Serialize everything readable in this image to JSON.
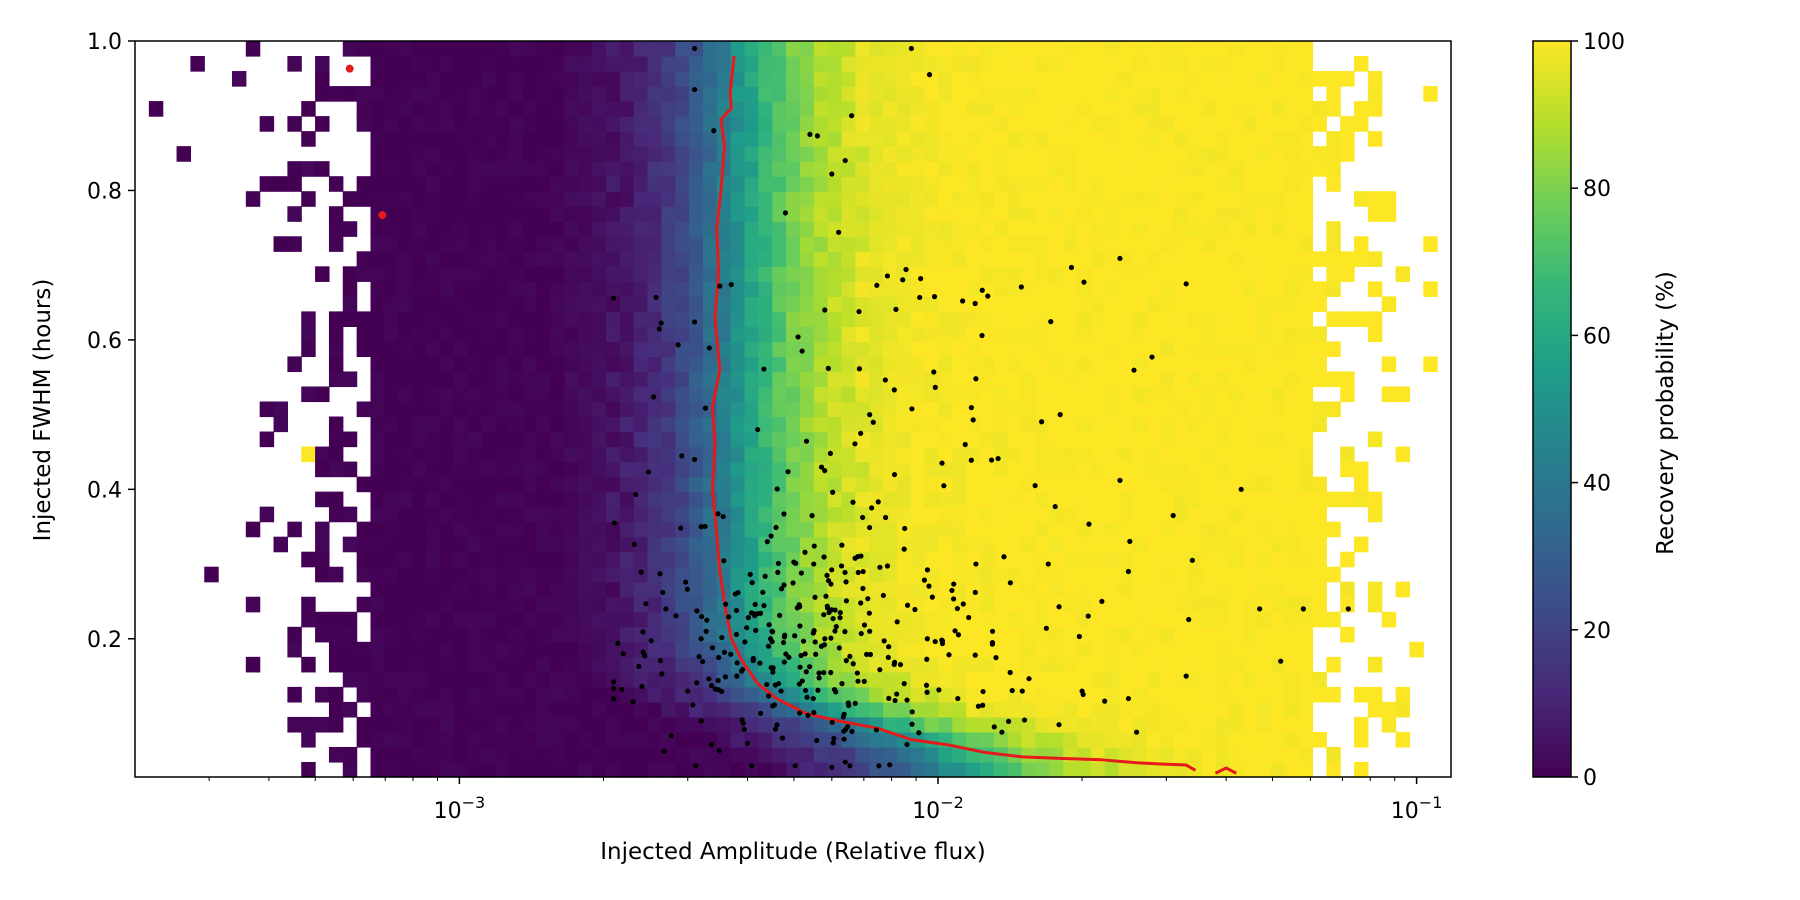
{
  "chart_data": {
    "type": "heatmap",
    "title": "",
    "xlabel": "Injected Amplitude (Relative flux)",
    "ylabel": "Injected FWHM (hours)",
    "xscale": "log",
    "xlim": [
      0.00021,
      0.118
    ],
    "ylim": [
      0.015,
      1.0
    ],
    "grid": false,
    "x_ticks": [
      {
        "value": 0.001,
        "base": "10",
        "exp": "−3"
      },
      {
        "value": 0.01,
        "base": "10",
        "exp": "−2"
      },
      {
        "value": 0.1,
        "base": "10",
        "exp": "−1"
      }
    ],
    "y_ticks": [
      {
        "value": 0.2,
        "label": "0.2"
      },
      {
        "value": 0.4,
        "label": "0.4"
      },
      {
        "value": 0.6,
        "label": "0.6"
      },
      {
        "value": 0.8,
        "label": "0.8"
      },
      {
        "value": 1.0,
        "label": "1.0"
      }
    ],
    "heatmap": {
      "x_bins": 95,
      "y_bins": 49,
      "description_values": "recovery probability (%) per cell; transition from ~0% to ~100% between amplitude ~0.0025 and ~0.006, shifting to ~0.012 at FWHM below 0.1 h; sparse empty cells at low and high amplitude edges",
      "transition_center_high_fwhm": 0.0038,
      "transition_center_low_fwhm": 0.012,
      "min_observed_amplitude": 0.00048,
      "max_observed_amplitude": 0.102
    },
    "colorbar": {
      "label": "Recovery probability (%)",
      "range": [
        0,
        100
      ],
      "ticks": [
        "0",
        "20",
        "40",
        "60",
        "80",
        "100"
      ],
      "colormap": "viridis",
      "colors": [
        "#440154",
        "#482878",
        "#3e4989",
        "#31688e",
        "#26828e",
        "#1f9e89",
        "#35b779",
        "#6ece58",
        "#b5de2b",
        "#fde725"
      ]
    },
    "threshold_curve": {
      "label": "",
      "color": "#e41a1c",
      "points": [
        [
          0.00375,
          0.98
        ],
        [
          0.00368,
          0.93
        ],
        [
          0.0037,
          0.91
        ],
        [
          0.00352,
          0.895
        ],
        [
          0.00358,
          0.86
        ],
        [
          0.00352,
          0.8
        ],
        [
          0.00345,
          0.75
        ],
        [
          0.00348,
          0.69
        ],
        [
          0.00342,
          0.63
        ],
        [
          0.0035,
          0.56
        ],
        [
          0.00338,
          0.51
        ],
        [
          0.00342,
          0.46
        ],
        [
          0.00338,
          0.4
        ],
        [
          0.00345,
          0.34
        ],
        [
          0.0035,
          0.29
        ],
        [
          0.0036,
          0.24
        ],
        [
          0.0037,
          0.2
        ],
        [
          0.0039,
          0.17
        ],
        [
          0.0042,
          0.14
        ],
        [
          0.0046,
          0.12
        ],
        [
          0.0053,
          0.1
        ],
        [
          0.0062,
          0.09
        ],
        [
          0.0075,
          0.08
        ],
        [
          0.0088,
          0.065
        ],
        [
          0.0105,
          0.058
        ],
        [
          0.0125,
          0.048
        ],
        [
          0.015,
          0.042
        ],
        [
          0.018,
          0.04
        ],
        [
          0.022,
          0.038
        ],
        [
          0.026,
          0.034
        ],
        [
          0.03,
          0.032
        ],
        [
          0.033,
          0.031
        ],
        [
          0.0345,
          0.024
        ]
      ],
      "tail_points": [
        [
          0.038,
          0.02
        ],
        [
          0.04,
          0.027
        ],
        [
          0.042,
          0.02
        ]
      ]
    },
    "red_markers": [
      {
        "x": 0.00069,
        "y": 0.767
      },
      {
        "x": 0.00059,
        "y": 0.963
      }
    ],
    "scatter_points": {
      "label": "",
      "color": "#000000",
      "count": 420,
      "description_values": "observed flare events: dense cluster at amplitude 0.003–0.01 and FWHM 0.05–0.35 h; sparse to amplitude ~0.07 and FWHM ~1.0 h",
      "sample": [
        [
          0.0031,
          0.99
        ],
        [
          0.0088,
          0.99
        ],
        [
          0.0096,
          0.955
        ],
        [
          0.0031,
          0.935
        ],
        [
          0.0066,
          0.9
        ],
        [
          0.0054,
          0.875
        ],
        [
          0.0056,
          0.873
        ],
        [
          0.0034,
          0.88
        ],
        [
          0.0064,
          0.84
        ],
        [
          0.006,
          0.822
        ],
        [
          0.0048,
          0.77
        ],
        [
          0.0062,
          0.744
        ],
        [
          0.0037,
          0.674
        ],
        [
          0.0035,
          0.672
        ],
        [
          0.0092,
          0.682
        ],
        [
          0.024,
          0.709
        ],
        [
          0.033,
          0.675
        ],
        [
          0.0031,
          0.624
        ],
        [
          0.0058,
          0.64
        ],
        [
          0.0052,
          0.585
        ],
        [
          0.0098,
          0.557
        ],
        [
          0.012,
          0.548
        ],
        [
          0.028,
          0.577
        ],
        [
          0.0031,
          0.44
        ],
        [
          0.0042,
          0.48
        ],
        [
          0.0072,
          0.5
        ],
        [
          0.0114,
          0.46
        ],
        [
          0.018,
          0.5
        ],
        [
          0.024,
          0.412
        ],
        [
          0.031,
          0.365
        ],
        [
          0.043,
          0.4
        ],
        [
          0.0032,
          0.35
        ],
        [
          0.0044,
          0.33
        ],
        [
          0.0055,
          0.3
        ],
        [
          0.0068,
          0.31
        ],
        [
          0.0085,
          0.32
        ],
        [
          0.012,
          0.3
        ],
        [
          0.017,
          0.3
        ],
        [
          0.025,
          0.29
        ],
        [
          0.034,
          0.305
        ],
        [
          0.022,
          0.25
        ],
        [
          0.047,
          0.24
        ],
        [
          0.058,
          0.24
        ],
        [
          0.072,
          0.24
        ],
        [
          0.0027,
          0.24
        ],
        [
          0.0032,
          0.2
        ],
        [
          0.0045,
          0.21
        ],
        [
          0.0058,
          0.2
        ],
        [
          0.0072,
          0.21
        ],
        [
          0.0095,
          0.2
        ],
        [
          0.013,
          0.21
        ],
        [
          0.0022,
          0.18
        ],
        [
          0.003,
          0.13
        ],
        [
          0.0038,
          0.15
        ],
        [
          0.0047,
          0.13
        ],
        [
          0.0063,
          0.14
        ],
        [
          0.0085,
          0.14
        ],
        [
          0.011,
          0.12
        ],
        [
          0.015,
          0.13
        ],
        [
          0.02,
          0.13
        ],
        [
          0.025,
          0.12
        ],
        [
          0.033,
          0.15
        ],
        [
          0.052,
          0.17
        ],
        [
          0.0032,
          0.09
        ],
        [
          0.004,
          0.06
        ],
        [
          0.006,
          0.028
        ],
        [
          0.0064,
          0.035
        ],
        [
          0.0136,
          0.075
        ],
        [
          0.0179,
          0.085
        ],
        [
          0.026,
          0.075
        ]
      ]
    }
  }
}
